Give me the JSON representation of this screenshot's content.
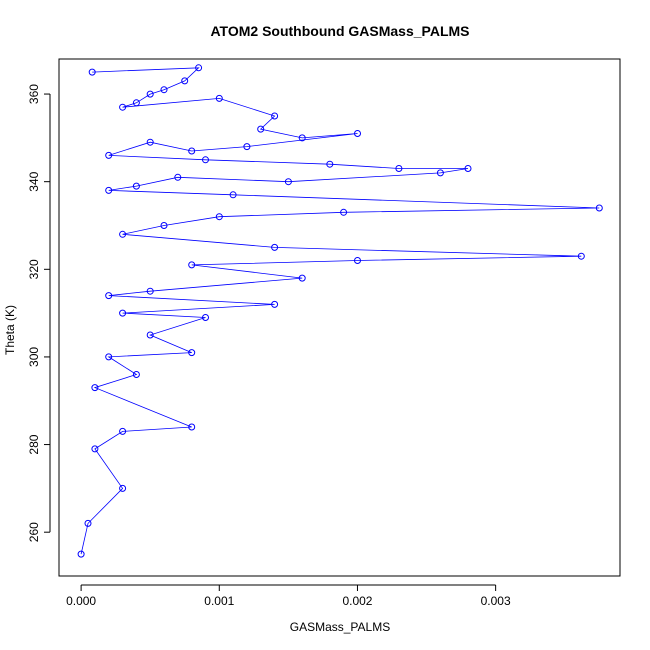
{
  "chart_data": {
    "type": "line",
    "title": "ATOM2 Southbound GASMass_PALMS",
    "xlabel": "GASMass_PALMS",
    "ylabel": "Theta (K)",
    "xlim": [
      -0.00016,
      0.0039
    ],
    "ylim": [
      250,
      368
    ],
    "xticks": [
      0.0,
      0.001,
      0.002,
      0.003
    ],
    "xtick_labels": [
      "0.000",
      "0.001",
      "0.002",
      "0.003"
    ],
    "yticks": [
      260,
      280,
      300,
      320,
      340,
      360
    ],
    "ytick_labels": [
      "260",
      "280",
      "300",
      "320",
      "340",
      "360"
    ],
    "grid": false,
    "legend": "none",
    "marker": "open-circle",
    "color": "#0000ff",
    "series": [
      {
        "x": [
          8e-05,
          0.00085,
          0.00075,
          0.0006,
          0.0005,
          0.0004,
          0.0003,
          0.001,
          0.0014,
          0.0013,
          0.0016,
          0.002,
          0.0012,
          0.0008,
          0.0005,
          0.0002,
          0.0009,
          0.0018,
          0.0023,
          0.0028,
          0.0026,
          0.0015,
          0.0007,
          0.0004,
          0.0002,
          0.0011,
          0.00375,
          0.0019,
          0.001,
          0.0006,
          0.0003,
          0.0014,
          0.00362,
          0.002,
          0.0008,
          0.0016,
          0.0005,
          0.0002,
          0.0014,
          0.0003,
          0.0009,
          0.0005,
          0.0008,
          0.0002,
          0.0004,
          0.0001,
          0.0008,
          0.0003,
          0.0001,
          0.0003,
          5e-05,
          0.0
        ],
        "y": [
          365,
          366,
          363,
          361,
          360,
          358,
          357,
          359,
          355,
          352,
          350,
          351,
          348,
          347,
          349,
          346,
          345,
          344,
          343,
          343,
          342,
          340,
          341,
          339,
          338,
          337,
          334,
          333,
          332,
          330,
          328,
          325,
          323,
          322,
          321,
          318,
          315,
          314,
          312,
          310,
          309,
          305,
          301,
          300,
          296,
          293,
          284,
          283,
          279,
          270,
          262,
          255
        ]
      }
    ]
  }
}
